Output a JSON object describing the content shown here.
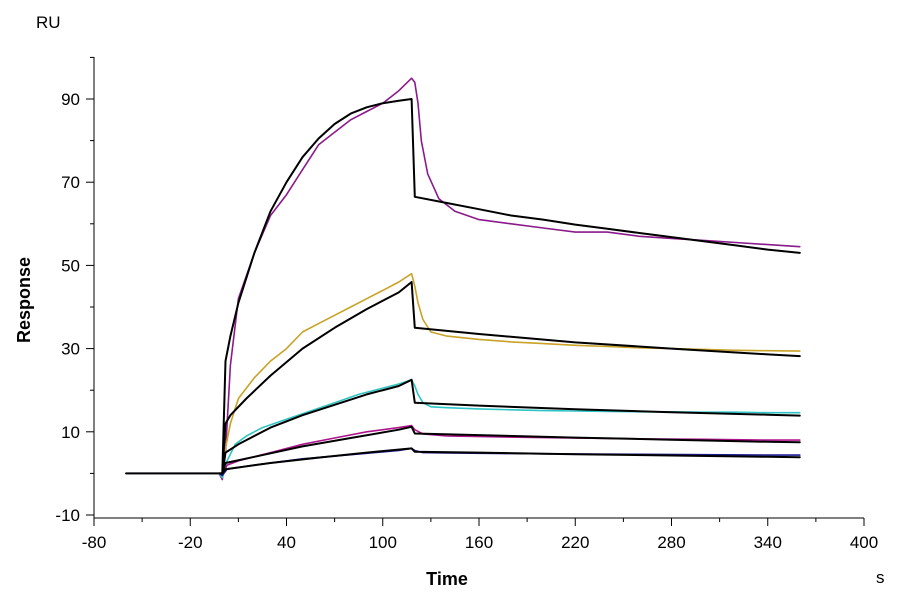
{
  "chart_data": {
    "type": "line",
    "xlabel": "Time",
    "ylabel": "Response",
    "x_unit": "s",
    "y_unit": "RU",
    "xlim": [
      -80,
      400
    ],
    "ylim": [
      -10,
      100
    ],
    "x_ticks": [
      -80,
      -20,
      40,
      100,
      160,
      220,
      280,
      340,
      400
    ],
    "y_ticks": [
      -10,
      10,
      30,
      50,
      70,
      90
    ],
    "grid": false,
    "legend": "none",
    "series": [
      {
        "color": "#8b1a8b",
        "role": "measured",
        "x": [
          -60,
          -2,
          0,
          2,
          5,
          10,
          20,
          30,
          40,
          50,
          60,
          70,
          80,
          90,
          100,
          110,
          118,
          120,
          122,
          124,
          128,
          135,
          145,
          160,
          180,
          200,
          220,
          240,
          260,
          280,
          300,
          320,
          340,
          360
        ],
        "y": [
          0,
          0,
          -1.5,
          5,
          26,
          42,
          53,
          62,
          67,
          73,
          79,
          82,
          85,
          87,
          89,
          92,
          95,
          94,
          89,
          80,
          72,
          66,
          63,
          61,
          60,
          59,
          58,
          58,
          57,
          56.5,
          56,
          55.5,
          55,
          54.5
        ]
      },
      {
        "color": "#c9a227",
        "role": "measured",
        "x": [
          -2,
          0,
          2,
          5,
          10,
          20,
          30,
          40,
          50,
          60,
          70,
          80,
          90,
          100,
          110,
          118,
          120,
          122,
          125,
          130,
          140,
          160,
          180,
          200,
          220,
          240,
          260,
          280,
          300,
          320,
          340,
          360
        ],
        "y": [
          0,
          -1,
          6,
          12,
          18,
          23,
          27,
          30,
          34,
          36,
          38,
          40,
          42,
          44,
          46,
          48,
          45,
          41,
          37,
          34,
          33,
          32.2,
          31.6,
          31.2,
          30.8,
          30.5,
          30.2,
          30,
          29.8,
          29.6,
          29.5,
          29.4
        ]
      },
      {
        "color": "#2ec4c4",
        "role": "measured",
        "x": [
          -60,
          -2,
          0,
          3,
          8,
          15,
          25,
          40,
          55,
          70,
          85,
          100,
          110,
          118,
          120,
          122,
          125,
          130,
          140,
          160,
          180,
          200,
          220,
          240,
          260,
          280,
          300,
          320,
          340,
          360
        ],
        "y": [
          0,
          0,
          -1,
          3,
          7,
          9,
          11,
          13,
          15,
          17,
          19,
          20.5,
          21.5,
          22.5,
          21,
          19,
          17,
          16,
          15.8,
          15.5,
          15.3,
          15.1,
          15,
          14.9,
          14.8,
          14.8,
          14.7,
          14.7,
          14.6,
          14.6
        ]
      },
      {
        "color": "#b0148c",
        "role": "measured",
        "x": [
          -2,
          0,
          3,
          10,
          30,
          50,
          70,
          90,
          110,
          118,
          120,
          125,
          140,
          200,
          260,
          300,
          340,
          360
        ],
        "y": [
          0,
          -0.5,
          2,
          3,
          5,
          7,
          8.5,
          10,
          11,
          11.5,
          10.5,
          9.5,
          9,
          8.6,
          8.3,
          8.2,
          8,
          8
        ]
      },
      {
        "color": "#1a1a8f",
        "role": "measured",
        "x": [
          -2,
          0,
          3,
          20,
          50,
          80,
          110,
          118,
          120,
          125,
          140,
          200,
          260,
          300,
          340,
          360
        ],
        "y": [
          0,
          -0.5,
          1,
          2,
          3.5,
          4.5,
          5.5,
          6,
          5.5,
          5,
          4.9,
          4.7,
          4.6,
          4.5,
          4.4,
          4.4
        ]
      },
      {
        "color": "#000000",
        "role": "fit",
        "x": [
          -2,
          0,
          2,
          5,
          10,
          20,
          30,
          40,
          50,
          60,
          70,
          80,
          90,
          100,
          110,
          118,
          120,
          140,
          160,
          180,
          200,
          220,
          240,
          260,
          280,
          300,
          320,
          340,
          360
        ],
        "y": [
          0,
          0,
          27,
          33,
          41,
          53,
          63,
          70,
          76,
          80.5,
          84,
          86.5,
          88,
          89,
          89.6,
          90,
          66.5,
          65,
          63.5,
          62,
          61,
          59.8,
          58.8,
          57.8,
          56.8,
          55.8,
          54.8,
          53.8,
          53
        ]
      },
      {
        "color": "#000000",
        "role": "fit",
        "x": [
          0,
          2,
          5,
          15,
          30,
          50,
          70,
          90,
          110,
          118,
          120,
          160,
          220,
          280,
          340,
          360
        ],
        "y": [
          0,
          12,
          14,
          18,
          23.5,
          30,
          35,
          39.5,
          43.5,
          46,
          35,
          33.5,
          31.5,
          30,
          28.6,
          28.2
        ]
      },
      {
        "color": "#000000",
        "role": "fit",
        "x": [
          0,
          2,
          10,
          30,
          50,
          70,
          90,
          110,
          118,
          120,
          160,
          220,
          280,
          340,
          360
        ],
        "y": [
          0,
          5,
          7,
          11,
          14,
          16.5,
          19,
          21,
          22.5,
          17,
          16.3,
          15.4,
          14.7,
          14.1,
          13.9
        ]
      },
      {
        "color": "#000000",
        "role": "fit",
        "x": [
          0,
          2,
          20,
          50,
          80,
          110,
          118,
          120,
          160,
          220,
          280,
          340,
          360
        ],
        "y": [
          0,
          2.5,
          4,
          6.5,
          8.5,
          10.5,
          11.2,
          9.6,
          9.2,
          8.6,
          8.1,
          7.6,
          7.5
        ]
      },
      {
        "color": "#000000",
        "role": "fit",
        "x": [
          -60,
          0,
          2,
          30,
          60,
          90,
          118,
          120,
          160,
          220,
          280,
          340,
          360
        ],
        "y": [
          0,
          0,
          1,
          2.5,
          3.8,
          5,
          6,
          5.2,
          5,
          4.6,
          4.3,
          4,
          3.9
        ]
      }
    ]
  }
}
